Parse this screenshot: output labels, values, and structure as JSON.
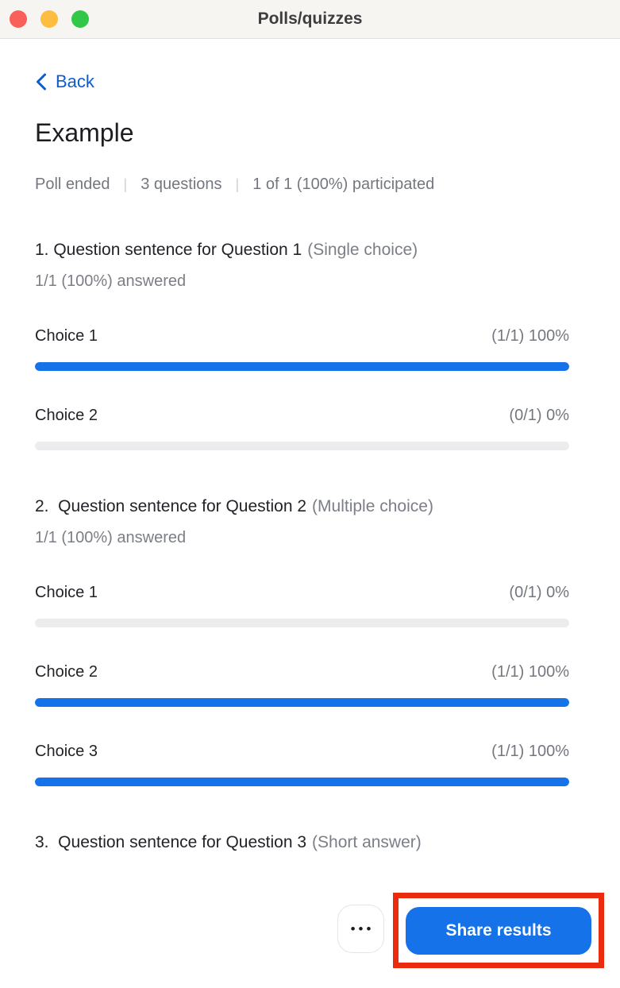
{
  "window": {
    "title": "Polls/quizzes"
  },
  "nav": {
    "back_label": "Back"
  },
  "poll": {
    "title": "Example",
    "status": {
      "ended": "Poll ended",
      "questions_count": "3 questions",
      "participation": "1 of 1 (100%) participated",
      "separator": "|"
    },
    "questions": [
      {
        "title": "1. Question sentence for Question 1",
        "type": "(Single choice)",
        "answered": "1/1 (100%) answered",
        "choices": [
          {
            "label": "Choice 1",
            "stat": "(1/1) 100%",
            "percent": 100
          },
          {
            "label": "Choice 2",
            "stat": "(0/1) 0%",
            "percent": 0
          }
        ]
      },
      {
        "title": "2.  Question sentence for Question 2",
        "type": "(Multiple choice)",
        "answered": "1/1 (100%) answered",
        "choices": [
          {
            "label": "Choice 1",
            "stat": "(0/1) 0%",
            "percent": 0
          },
          {
            "label": "Choice 2",
            "stat": "(1/1) 100%",
            "percent": 100
          },
          {
            "label": "Choice 3",
            "stat": "(1/1) 100%",
            "percent": 100
          }
        ]
      },
      {
        "title": "3.  Question sentence for Question 3",
        "type": "(Short answer)"
      }
    ]
  },
  "footer": {
    "more_label": "•••",
    "share_label": "Share results"
  },
  "colors": {
    "accent_blue": "#1672e8",
    "link_blue": "#0c5ccd",
    "bar_empty": "#ececef",
    "annotation_red": "#ea2b0e",
    "titlebar_bg": "#f7f5f2"
  }
}
